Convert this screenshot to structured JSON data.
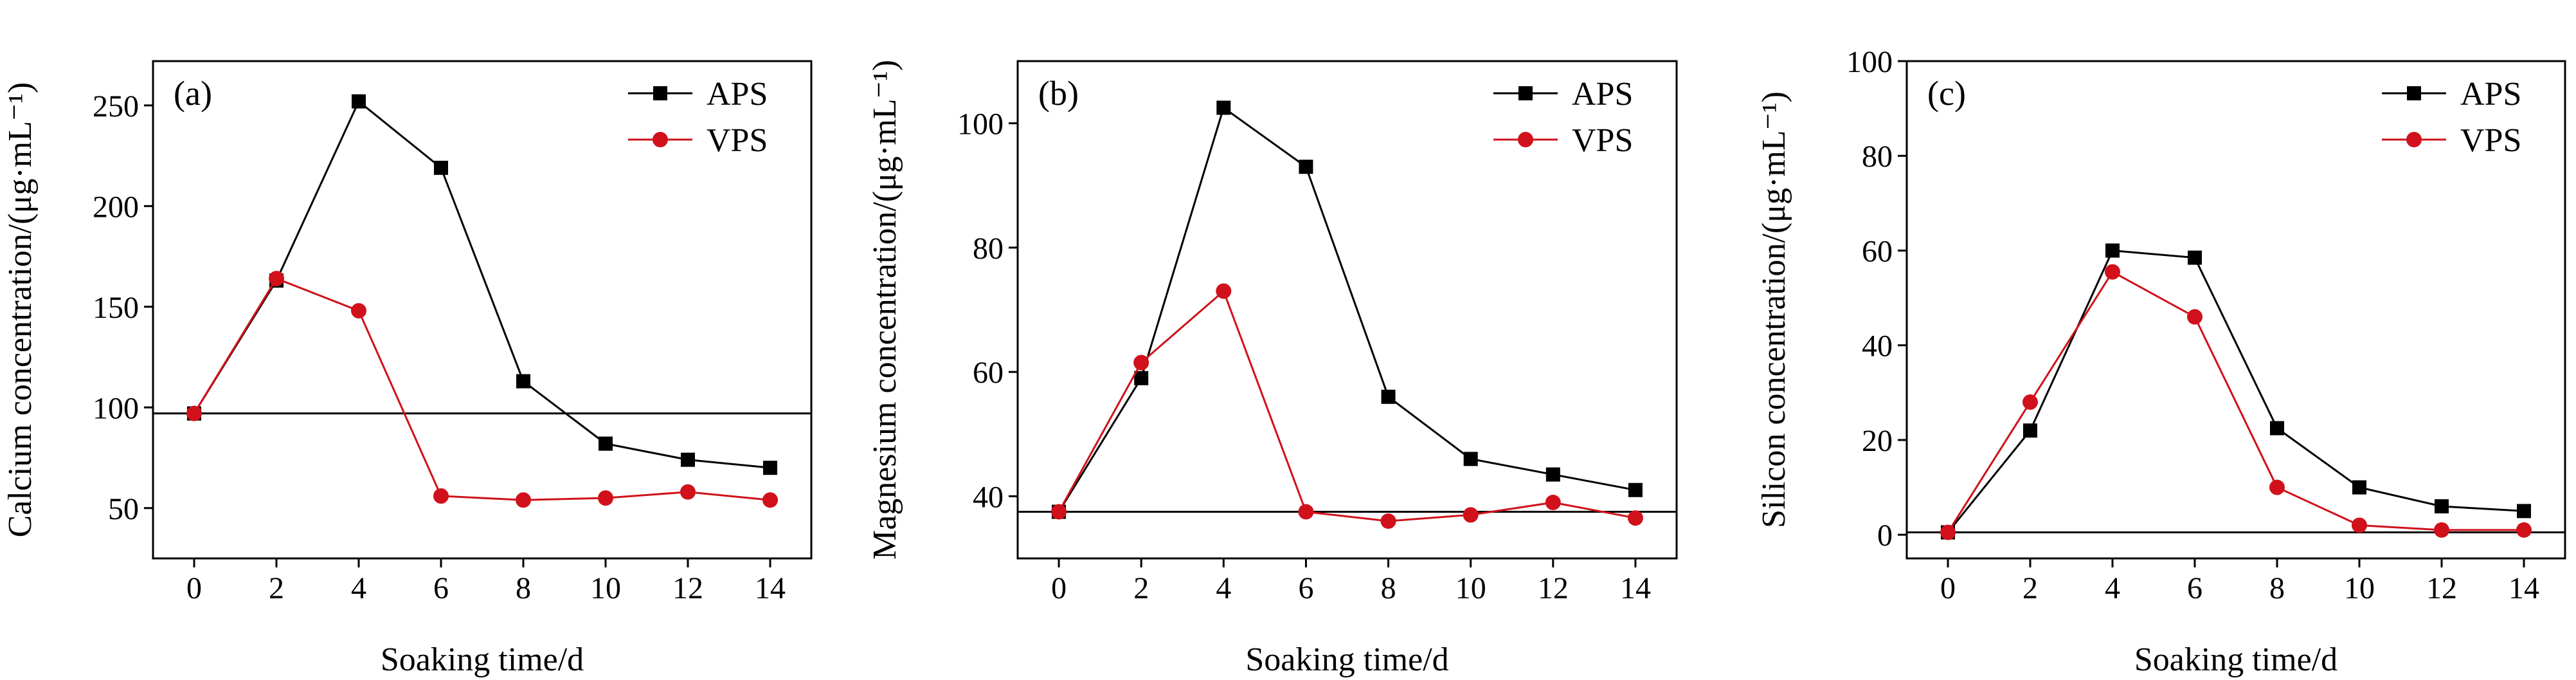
{
  "figure": {
    "colors": {
      "APS": "#000000",
      "VPS": "#d0111b",
      "axis": "#000000"
    },
    "panels": [
      {
        "id": "a",
        "panel_label": "(a)",
        "legend": [
          "APS",
          "VPS"
        ]
      },
      {
        "id": "b",
        "panel_label": "(b)",
        "legend": [
          "APS",
          "VPS"
        ]
      },
      {
        "id": "c",
        "panel_label": "(c)",
        "legend": [
          "APS",
          "VPS"
        ]
      }
    ]
  },
  "chart_data": [
    {
      "type": "line",
      "panel_label": "(a)",
      "xlabel": "Soaking time/d",
      "ylabel": "Calcium concentration/(μg·mL⁻¹)",
      "x": [
        0,
        2,
        4,
        6,
        8,
        10,
        12,
        14
      ],
      "xlim": [
        -1,
        15
      ],
      "ylim": [
        25,
        272
      ],
      "xticks": [
        0,
        2,
        4,
        6,
        8,
        10,
        12,
        14
      ],
      "yticks": [
        50,
        100,
        150,
        200,
        250
      ],
      "reference_line": 97,
      "legend_position": "top-right",
      "grid": false,
      "series": [
        {
          "name": "APS",
          "marker": "square",
          "values": [
            97,
            163,
            252,
            219,
            113,
            82,
            74,
            70
          ]
        },
        {
          "name": "VPS",
          "marker": "circle",
          "values": [
            97,
            164,
            148,
            56,
            54,
            55,
            58,
            54
          ]
        }
      ]
    },
    {
      "type": "line",
      "panel_label": "(b)",
      "xlabel": "Soaking time/d",
      "ylabel": "Magnesium concentration/(μg·mL⁻¹)",
      "x": [
        0,
        2,
        4,
        6,
        8,
        10,
        12,
        14
      ],
      "xlim": [
        -1,
        15
      ],
      "ylim": [
        30,
        110
      ],
      "xticks": [
        0,
        2,
        4,
        6,
        8,
        10,
        12,
        14
      ],
      "yticks": [
        40,
        60,
        80,
        100
      ],
      "reference_line": 37.5,
      "legend_position": "top-right",
      "grid": false,
      "series": [
        {
          "name": "APS",
          "marker": "square",
          "values": [
            37.5,
            59,
            102.5,
            93,
            56,
            46,
            43.5,
            41
          ]
        },
        {
          "name": "VPS",
          "marker": "circle",
          "values": [
            37.5,
            61.5,
            73,
            37.5,
            36,
            37,
            39,
            36.5
          ]
        }
      ]
    },
    {
      "type": "line",
      "panel_label": "(c)",
      "xlabel": "Soaking time/d",
      "ylabel": "Silicon concentration/(μg·mL⁻¹)",
      "x": [
        0,
        2,
        4,
        6,
        8,
        10,
        12,
        14
      ],
      "xlim": [
        -1,
        15
      ],
      "ylim": [
        -5,
        100
      ],
      "xticks": [
        0,
        2,
        4,
        6,
        8,
        10,
        12,
        14
      ],
      "yticks": [
        0,
        20,
        40,
        60,
        80,
        100
      ],
      "reference_line": 0.5,
      "legend_position": "top-right",
      "grid": false,
      "series": [
        {
          "name": "APS",
          "marker": "square",
          "values": [
            0.5,
            22,
            60,
            58.5,
            22.5,
            10,
            6,
            5
          ]
        },
        {
          "name": "VPS",
          "marker": "circle",
          "values": [
            0.5,
            28,
            55.5,
            46,
            10,
            2,
            1,
            1
          ]
        }
      ]
    }
  ]
}
